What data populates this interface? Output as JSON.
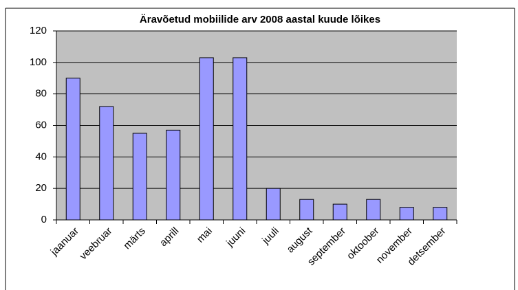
{
  "chart_data": {
    "type": "bar",
    "title": "Äravõetud mobiilide arv 2008 aastal kuude lõikes",
    "categories": [
      "jaanuar",
      "veebruar",
      "märts",
      "aprill",
      "mai",
      "juuni",
      "juuli",
      "august",
      "september",
      "oktoober",
      "november",
      "detsember"
    ],
    "values": [
      90,
      72,
      55,
      57,
      103,
      103,
      20,
      13,
      10,
      13,
      8,
      8
    ],
    "color": "#9999ff",
    "ylim": [
      0,
      120
    ],
    "yticks": [
      0,
      20,
      40,
      60,
      80,
      100,
      120
    ],
    "grid": true
  }
}
